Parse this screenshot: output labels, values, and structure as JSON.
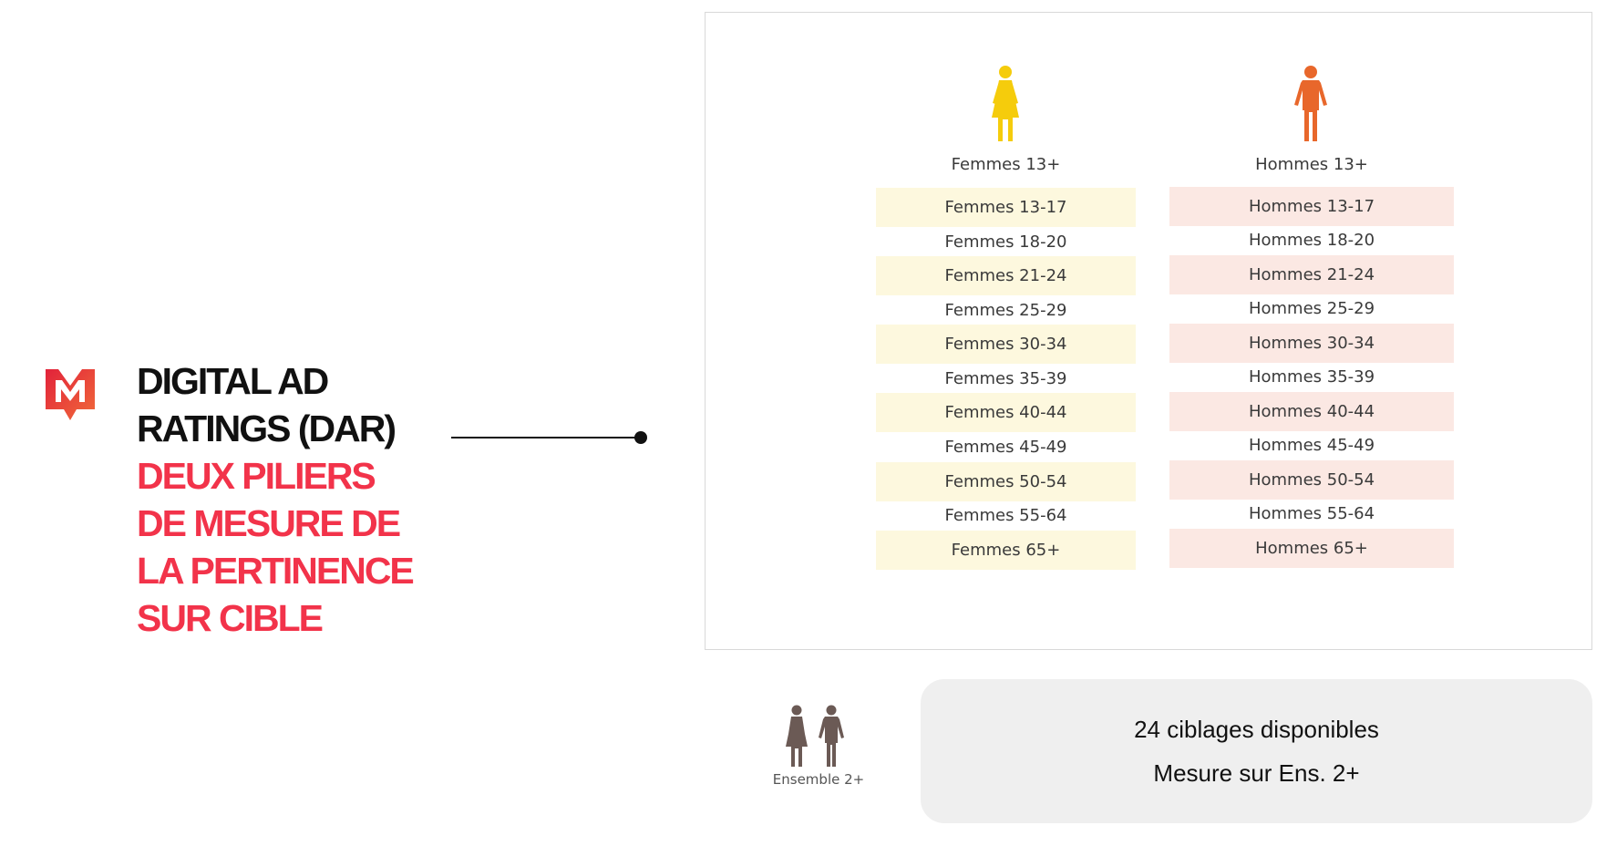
{
  "logo": {
    "icon": "m-logo-icon",
    "colors": [
      "#e2223a",
      "#f06a3a"
    ]
  },
  "headline": {
    "black_lines": [
      "DIGITAL AD",
      "RATINGS (DAR)"
    ],
    "red_lines": [
      "DEUX PILIERS",
      "DE MESURE DE",
      "LA PERTINENCE",
      "SUR CIBLE"
    ],
    "black_color": "#111111",
    "red_color": "#f2334a"
  },
  "women": {
    "header": "Femmes  13+",
    "icon": "woman-icon",
    "color": "#f5cc0c",
    "shade_color": "#fdf8de",
    "rows": [
      "Femmes 13-17",
      "Femmes 18-20",
      "Femmes 21-24",
      "Femmes 25-29",
      "Femmes 30-34",
      "Femmes 35-39",
      "Femmes 40-44",
      "Femmes 45-49",
      "Femmes 50-54",
      "Femmes 55-64",
      "Femmes 65+"
    ]
  },
  "men": {
    "header": "Hommes 13+",
    "icon": "man-icon",
    "color": "#e8672b",
    "shade_color": "#fbe8e3",
    "rows": [
      "Hommes 13-17",
      "Hommes 18-20",
      "Hommes 21-24",
      "Hommes 25-29",
      "Hommes 30-34",
      "Hommes 35-39",
      "Hommes 40-44",
      "Hommes 45-49",
      "Hommes 50-54",
      "Hommes 55-64",
      "Hommes 65+"
    ]
  },
  "ensemble": {
    "label": "Ensemble 2+",
    "icon": "couple-icon",
    "color": "#6b5a55"
  },
  "info": {
    "line1": "24 ciblages disponibles",
    "line2": "Mesure sur Ens. 2+"
  }
}
